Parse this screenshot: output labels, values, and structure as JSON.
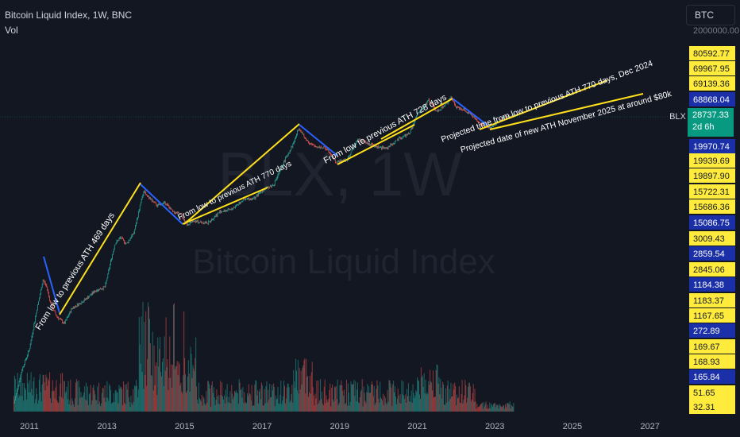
{
  "header": {
    "symbol_line": "Bitcoin Liquid Index, 1W, BNC",
    "volume_label": "Vol"
  },
  "symbol_search": {
    "value": "BTC"
  },
  "watermark": {
    "ticker": "BLX, 1W",
    "name": "Bitcoin Liquid Index"
  },
  "last_price": {
    "ticker_label": "BLX",
    "value": "28737.33",
    "countdown": "2d 6h",
    "color": "#089981"
  },
  "colors": {
    "background": "#131722",
    "up_candle": "#26a69a",
    "down_candle": "#ef5350",
    "trendline_yellow": "#ffe01b",
    "trendline_blue": "#2962ff",
    "label_yellow": "#ffeb3b",
    "label_blue": "#1a2fa8"
  },
  "chart_data": {
    "type": "line",
    "title": "Bitcoin Liquid Index, 1W, BNC",
    "xlabel": "",
    "ylabel": "",
    "scale": "log",
    "grid": false,
    "x_ticks": [
      "2011",
      "2013",
      "2015",
      "2017",
      "2019",
      "2021",
      "2023",
      "2025",
      "2027"
    ],
    "xlim": [
      2010.5,
      2027.8
    ],
    "ylim_visible": [
      30,
      250000
    ],
    "series": [
      {
        "x": [
          2010.6,
          2010.8,
          2011.0,
          2011.2,
          2011.35,
          2011.45,
          2011.55,
          2011.7,
          2011.9,
          2012.1,
          2012.4,
          2012.7,
          2012.95,
          2013.2,
          2013.35,
          2013.5,
          2013.7,
          2013.85,
          2013.95,
          2014.1,
          2014.3,
          2014.5,
          2014.7,
          2014.9,
          2015.05,
          2015.3,
          2015.6,
          2015.9,
          2016.2,
          2016.5,
          2016.8,
          2017.0,
          2017.3,
          2017.6,
          2017.8,
          2017.95,
          2018.1,
          2018.3,
          2018.5,
          2018.7,
          2018.9,
          2019.2,
          2019.45,
          2019.7,
          2019.95,
          2020.2,
          2020.5,
          2020.8,
          2021.0,
          2021.3,
          2021.5,
          2021.7,
          2021.87,
          2022.0,
          2022.2,
          2022.4,
          2022.6,
          2022.9,
          2023.1,
          2023.3,
          2023.5
        ],
        "values": [
          0.07,
          0.3,
          0.8,
          5,
          18,
          13,
          6,
          3.5,
          2.5,
          5,
          7,
          11,
          13,
          90,
          120,
          90,
          150,
          500,
          1000,
          700,
          500,
          580,
          380,
          340,
          220,
          250,
          230,
          380,
          420,
          650,
          700,
          1000,
          1300,
          4200,
          8000,
          17000,
          10500,
          7500,
          7000,
          6400,
          3500,
          4000,
          10000,
          8500,
          7200,
          6600,
          9800,
          13000,
          30000,
          58000,
          35000,
          45000,
          65000,
          43000,
          38000,
          30000,
          20000,
          16500,
          23000,
          28000,
          28737
        ]
      }
    ],
    "price_scale_labels": [
      {
        "value": "80592.77",
        "style": "yellow"
      },
      {
        "value": "69967.95",
        "style": "yellow"
      },
      {
        "value": "69139.36",
        "style": "yellow"
      },
      {
        "value": "68868.04",
        "style": "blue"
      },
      {
        "value": "28737.33",
        "style": "last"
      },
      {
        "value": "19970.74",
        "style": "blue"
      },
      {
        "value": "19939.69",
        "style": "yellow"
      },
      {
        "value": "19897.90",
        "style": "yellow"
      },
      {
        "value": "15722.31",
        "style": "yellow"
      },
      {
        "value": "15686.36",
        "style": "yellow"
      },
      {
        "value": "15086.75",
        "style": "blue"
      },
      {
        "value": "3009.43",
        "style": "yellow"
      },
      {
        "value": "2859.54",
        "style": "blue"
      },
      {
        "value": "2845.06",
        "style": "yellow"
      },
      {
        "value": "1184.38",
        "style": "blue"
      },
      {
        "value": "1183.37",
        "style": "yellow"
      },
      {
        "value": "1167.65",
        "style": "yellow"
      },
      {
        "value": "272.89",
        "style": "blue"
      },
      {
        "value": "169.67",
        "style": "yellow"
      },
      {
        "value": "168.93",
        "style": "yellow"
      },
      {
        "value": "165.84",
        "style": "blue"
      },
      {
        "value": "51.65",
        "style": "yellow"
      },
      {
        "value": "32.31",
        "style": "yellow"
      }
    ],
    "annotations": [
      {
        "text": "From low to previous ATH 469 days"
      },
      {
        "text": "From low to previous ATH 770 days"
      },
      {
        "text": "From low to previous ATH 728 days"
      },
      {
        "text": "Projected time from low to previous ATH 770 days, Dec 2024"
      },
      {
        "text": "Projected date of new ATH November 2025 at around $80k"
      }
    ]
  }
}
